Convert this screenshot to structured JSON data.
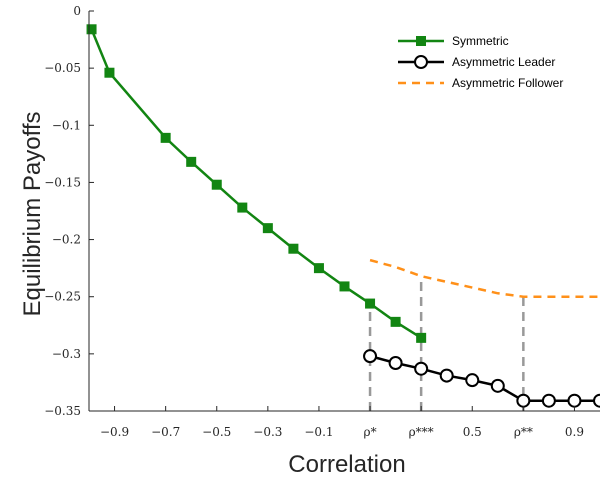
{
  "chart_data": {
    "type": "line",
    "xlabel": "Correlation",
    "ylabel": "Equilibrium Payoffs",
    "xlim": [
      -1.0,
      1.0
    ],
    "ylim": [
      -0.35,
      0.0
    ],
    "grid": false,
    "legend_position": "top-right",
    "x_ticks": [
      {
        "value": -0.9,
        "label": "−0.9"
      },
      {
        "value": -0.7,
        "label": "−0.7"
      },
      {
        "value": -0.5,
        "label": "−0.5"
      },
      {
        "value": -0.3,
        "label": "−0.3"
      },
      {
        "value": -0.1,
        "label": "−0.1"
      },
      {
        "value": 0.1,
        "label": "ρ*"
      },
      {
        "value": 0.3,
        "label": "ρ***"
      },
      {
        "value": 0.5,
        "label": "0.5"
      },
      {
        "value": 0.7,
        "label": "ρ**"
      },
      {
        "value": 0.9,
        "label": "0.9"
      }
    ],
    "y_ticks": [
      {
        "value": 0.0,
        "label": "0"
      },
      {
        "value": -0.05,
        "label": "−0.05"
      },
      {
        "value": -0.1,
        "label": "−0.1"
      },
      {
        "value": -0.15,
        "label": "−0.15"
      },
      {
        "value": -0.2,
        "label": "−0.2"
      },
      {
        "value": -0.25,
        "label": "−0.25"
      },
      {
        "value": -0.3,
        "label": "−0.3"
      },
      {
        "value": -0.35,
        "label": "−0.35"
      }
    ],
    "series": [
      {
        "name": "Symmetric",
        "color": "#128512",
        "style": "solid-square-markers",
        "x": [
          -0.99,
          -0.92,
          -0.7,
          -0.6,
          -0.5,
          -0.4,
          -0.3,
          -0.2,
          -0.1,
          0.0,
          0.1,
          0.2,
          0.3
        ],
        "y": [
          -0.016,
          -0.054,
          -0.111,
          -0.132,
          -0.152,
          -0.172,
          -0.19,
          -0.208,
          -0.225,
          -0.241,
          -0.256,
          -0.272,
          -0.286
        ]
      },
      {
        "name": "Asymmetric Leader",
        "color": "#000000",
        "style": "solid-circle-markers",
        "x": [
          0.1,
          0.2,
          0.3,
          0.4,
          0.5,
          0.6,
          0.7,
          0.8,
          0.9,
          1.0
        ],
        "y": [
          -0.302,
          -0.308,
          -0.313,
          -0.319,
          -0.323,
          -0.328,
          -0.341,
          -0.341,
          -0.341,
          -0.341
        ]
      },
      {
        "name": "Asymmetric Follower",
        "color": "#ff9019",
        "style": "dashed",
        "x": [
          0.1,
          0.2,
          0.3,
          0.4,
          0.5,
          0.6,
          0.7,
          0.8,
          0.9,
          1.0
        ],
        "y": [
          -0.218,
          -0.224,
          -0.232,
          -0.237,
          -0.242,
          -0.247,
          -0.25,
          -0.25,
          -0.25,
          -0.25
        ]
      }
    ],
    "reference_lines": [
      {
        "x": 0.1,
        "y_to": -0.256,
        "color": "#999999"
      },
      {
        "x": 0.3,
        "y_to": -0.232,
        "color": "#999999"
      },
      {
        "x": 0.7,
        "y_to": -0.25,
        "color": "#999999"
      }
    ]
  }
}
